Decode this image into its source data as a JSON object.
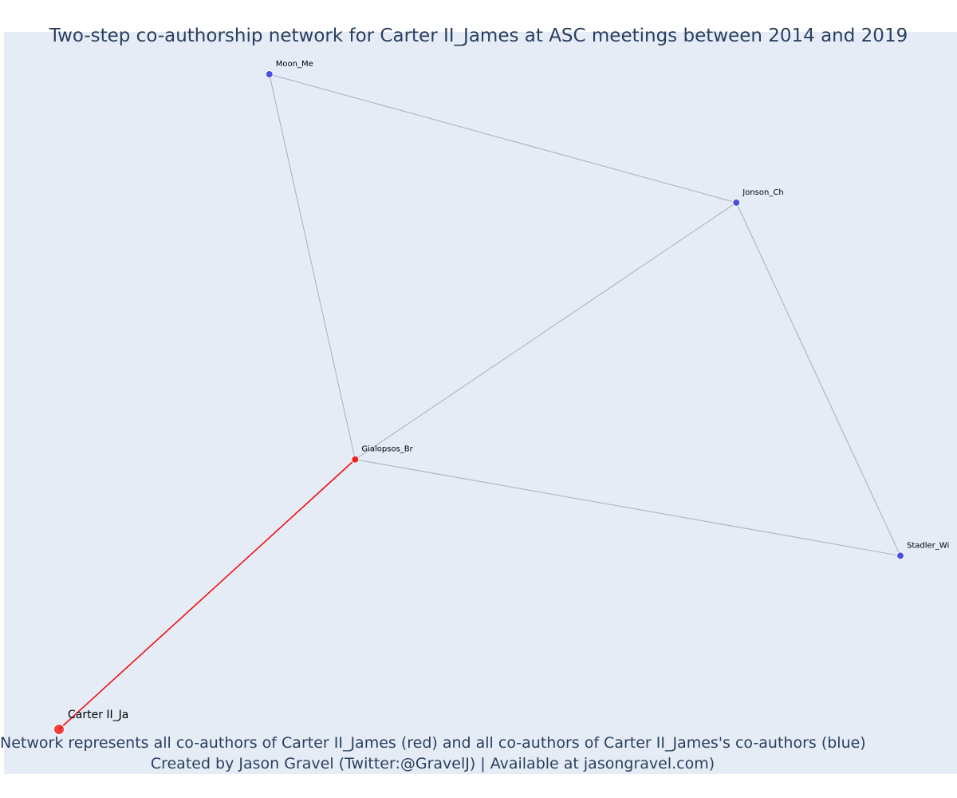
{
  "title": "Two-step co-authorship network for Carter II_James at ASC meetings between 2014 and 2019",
  "caption": {
    "line1": "Network represents all co-authors of Carter II_James (red) and all co-authors of Carter II_James's co-authors (blue)",
    "line2": "Created by Jason Gravel (Twitter:@GravelJ) | Available at jasongravel.com)"
  },
  "colors": {
    "background": "#e5ecf6",
    "first_step": "#ee1111",
    "second_step": "#3a3fe0",
    "edge": "#a9adbf",
    "text": "#2a3f5f"
  },
  "chart_data": {
    "type": "network",
    "nodes": [
      {
        "id": "carter",
        "label": "Carter II_Ja",
        "group": "focal",
        "x": 0.0,
        "y": 0.0
      },
      {
        "id": "gialopsos",
        "label": "Gialopsos_Br",
        "group": "co-author",
        "x": 0.352,
        "y": 0.412
      },
      {
        "id": "moon",
        "label": "Moon_Me",
        "group": "co-author-of-co-author",
        "x": 0.25,
        "y": 1.0
      },
      {
        "id": "jonson",
        "label": "Jonson_Ch",
        "group": "co-author-of-co-author",
        "x": 0.805,
        "y": 0.804
      },
      {
        "id": "stadler",
        "label": "Stadler_Wi",
        "group": "co-author-of-co-author",
        "x": 1.0,
        "y": 0.265
      }
    ],
    "edges": [
      {
        "source": "carter",
        "target": "gialopsos",
        "type": "first-step"
      },
      {
        "source": "gialopsos",
        "target": "moon",
        "type": "second-step"
      },
      {
        "source": "gialopsos",
        "target": "jonson",
        "type": "second-step"
      },
      {
        "source": "gialopsos",
        "target": "stadler",
        "type": "second-step"
      },
      {
        "source": "moon",
        "target": "jonson",
        "type": "second-step"
      },
      {
        "source": "jonson",
        "target": "stadler",
        "type": "second-step"
      }
    ]
  }
}
